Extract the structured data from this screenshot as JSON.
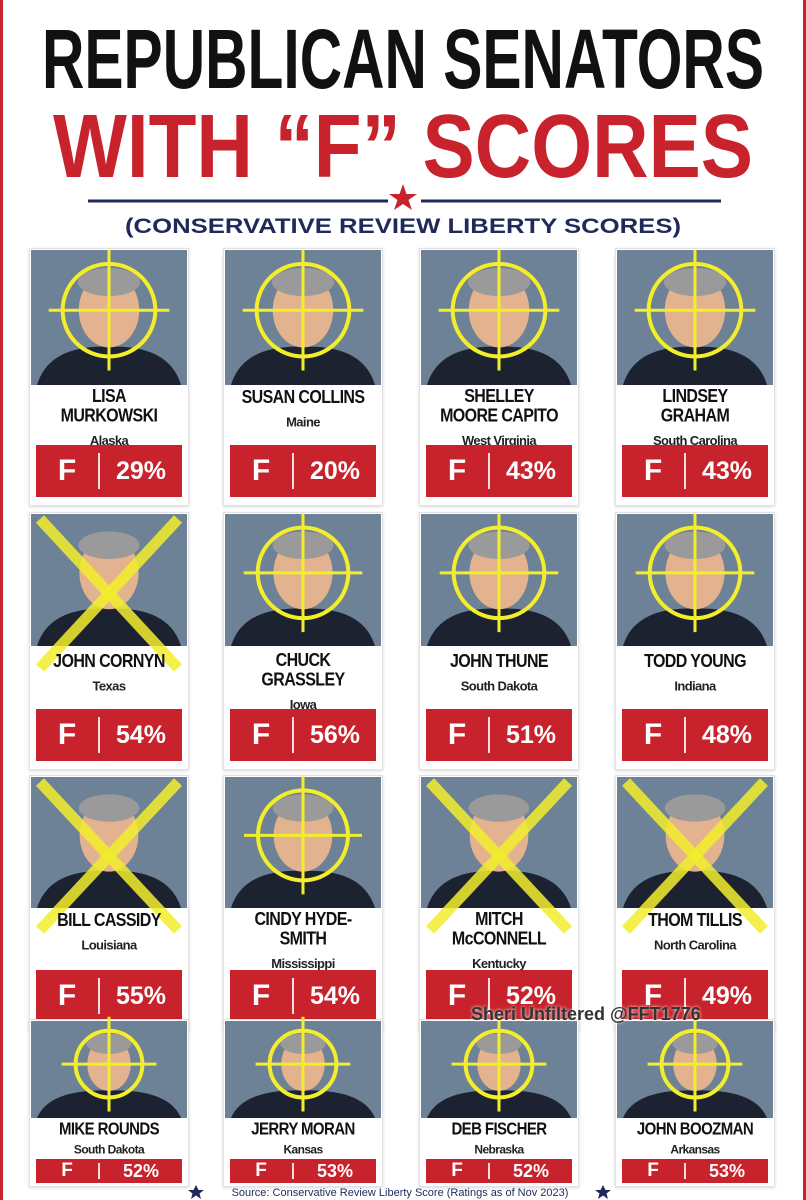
{
  "header": {
    "title_line1": "REPUBLICAN SENATORS",
    "title_line2": "WITH “F” SCORES",
    "subtitle": "(CONSERVATIVE REVIEW LIBERTY SCORES)"
  },
  "senators": [
    {
      "name": "LISA MURKOWSKI",
      "state": "Alaska",
      "grade": "F",
      "score": "29%",
      "overlay": "target"
    },
    {
      "name": "SUSAN COLLINS",
      "state": "Maine",
      "grade": "F",
      "score": "20%",
      "overlay": "target"
    },
    {
      "name": "SHELLEY MOORE CAPITO",
      "state": "West Virginia",
      "grade": "F",
      "score": "43%",
      "overlay": "target"
    },
    {
      "name": "LINDSEY GRAHAM",
      "state": "South Carolina",
      "grade": "F",
      "score": "43%",
      "overlay": "target"
    },
    {
      "name": "JOHN CORNYN",
      "state": "Texas",
      "grade": "F",
      "score": "54%",
      "overlay": "cross"
    },
    {
      "name": "CHUCK GRASSLEY",
      "state": "Iowa",
      "grade": "F",
      "score": "56%",
      "overlay": "target"
    },
    {
      "name": "JOHN THUNE",
      "state": "South Dakota",
      "grade": "F",
      "score": "51%",
      "overlay": "target"
    },
    {
      "name": "TODD YOUNG",
      "state": "Indiana",
      "grade": "F",
      "score": "48%",
      "overlay": "target"
    },
    {
      "name": "BILL CASSIDY",
      "state": "Louisiana",
      "grade": "F",
      "score": "55%",
      "overlay": "cross"
    },
    {
      "name": "CINDY HYDE-SMITH",
      "state": "Mississippi",
      "grade": "F",
      "score": "54%",
      "overlay": "target"
    },
    {
      "name": "MITCH McCONNELL",
      "state": "Kentucky",
      "grade": "F",
      "score": "52%",
      "overlay": "cross"
    },
    {
      "name": "THOM TILLIS",
      "state": "North Carolina",
      "grade": "F",
      "score": "49%",
      "overlay": "cross"
    },
    {
      "name": "MIKE ROUNDS",
      "state": "South Dakota",
      "grade": "F",
      "score": "52%",
      "overlay": "target"
    },
    {
      "name": "JERRY MORAN",
      "state": "Kansas",
      "grade": "F",
      "score": "53%",
      "overlay": "target"
    },
    {
      "name": "DEB FISCHER",
      "state": "Nebraska",
      "grade": "F",
      "score": "52%",
      "overlay": "target"
    },
    {
      "name": "JOHN BOOZMAN",
      "state": "Arkansas",
      "grade": "F",
      "score": "53%",
      "overlay": "target"
    }
  ],
  "watermark": "Sheri Unfiltered @FFT1776",
  "source": "Source: Conservative Review Liberty Score (Ratings as of Nov 2023)"
}
